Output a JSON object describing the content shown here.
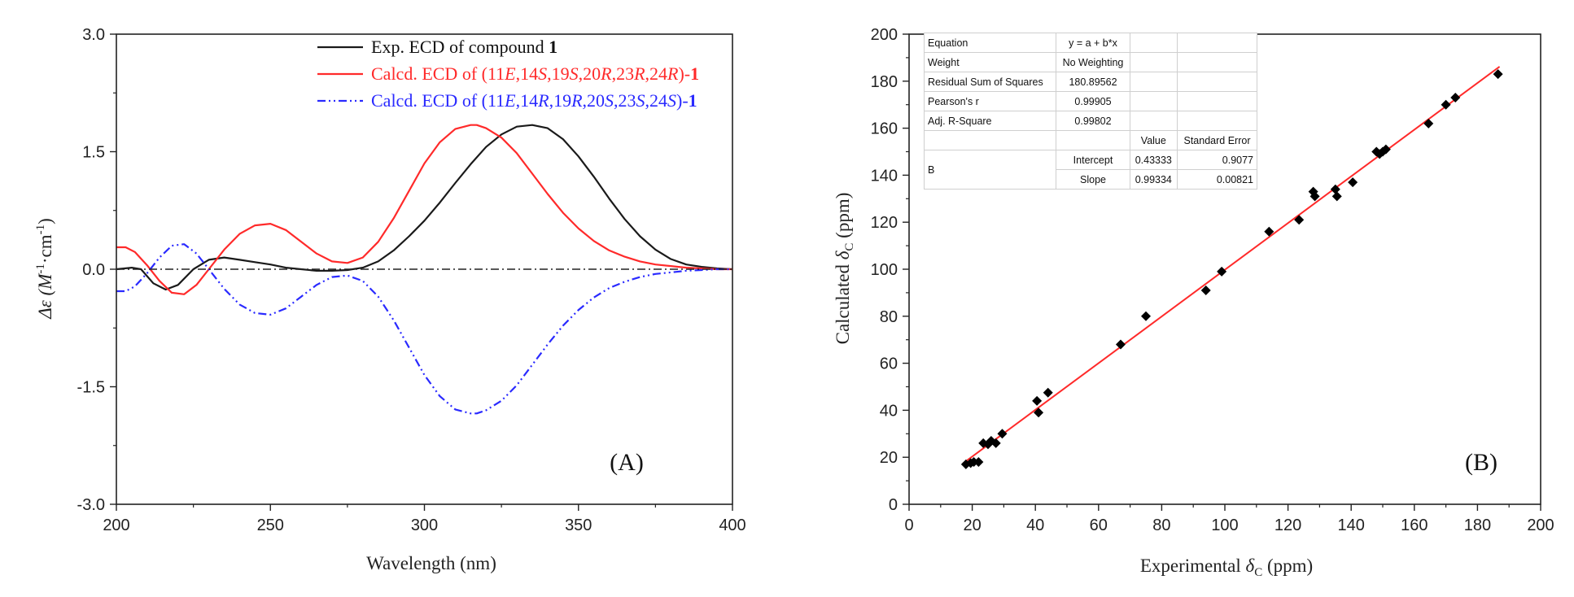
{
  "chart_data": [
    {
      "type": "line",
      "panel_label": "(A)",
      "xlabel": "Wavelength (nm)",
      "ylabel_prefix": "Δε (M",
      "ylabel_sup1": "-1",
      "ylabel_mid": "·cm",
      "ylabel_sup2": "-1",
      "ylabel_suffix": ")",
      "xlim": [
        200,
        400
      ],
      "ylim": [
        -3.0,
        3.0
      ],
      "xticks": [
        200,
        250,
        300,
        350,
        400
      ],
      "yticks": [
        -3.0,
        -1.5,
        0.0,
        1.5,
        3.0
      ],
      "xtick_labels": [
        "200",
        "250",
        "300",
        "350",
        "400"
      ],
      "ytick_labels": [
        "-3.0",
        "-1.5",
        "0.0",
        "1.5",
        "3.0"
      ],
      "legend_position": "top-right",
      "series": [
        {
          "name": "Exp. ECD of compound 1",
          "legend_parts": [
            {
              "text": "Exp. ECD of compound ",
              "style": "normal"
            },
            {
              "text": "1",
              "style": "bold"
            }
          ],
          "color": "#1a1a1a",
          "dash": "solid",
          "x": [
            200,
            205,
            208,
            212,
            216,
            220,
            225,
            230,
            235,
            240,
            245,
            250,
            255,
            260,
            265,
            270,
            275,
            280,
            285,
            290,
            295,
            300,
            305,
            310,
            315,
            320,
            325,
            330,
            335,
            340,
            345,
            350,
            355,
            360,
            365,
            370,
            375,
            380,
            385,
            390,
            395,
            400
          ],
          "y": [
            0.0,
            0.02,
            0.0,
            -0.18,
            -0.26,
            -0.2,
            0.0,
            0.12,
            0.15,
            0.12,
            0.09,
            0.06,
            0.02,
            0.0,
            -0.02,
            -0.02,
            -0.01,
            0.02,
            0.1,
            0.24,
            0.42,
            0.62,
            0.85,
            1.1,
            1.34,
            1.56,
            1.72,
            1.82,
            1.84,
            1.8,
            1.66,
            1.44,
            1.18,
            0.9,
            0.64,
            0.42,
            0.25,
            0.13,
            0.06,
            0.03,
            0.01,
            0.0
          ]
        },
        {
          "name": "Calcd. ECD of (11E,14S,19S,20R,23R,24R)-1",
          "legend_parts": [
            {
              "text": "Calcd. ECD of (11",
              "style": "normal"
            },
            {
              "text": "E",
              "style": "italic"
            },
            {
              "text": ",14",
              "style": "normal"
            },
            {
              "text": "S",
              "style": "italic"
            },
            {
              "text": ",19",
              "style": "normal"
            },
            {
              "text": "S",
              "style": "italic"
            },
            {
              "text": ",20",
              "style": "normal"
            },
            {
              "text": "R",
              "style": "italic"
            },
            {
              "text": ",23",
              "style": "normal"
            },
            {
              "text": "R",
              "style": "italic"
            },
            {
              "text": ",24",
              "style": "normal"
            },
            {
              "text": "R",
              "style": "italic"
            },
            {
              "text": ")-",
              "style": "normal"
            },
            {
              "text": "1",
              "style": "bold"
            }
          ],
          "color": "#ff2a2a",
          "dash": "solid",
          "x": [
            200,
            203,
            206,
            210,
            214,
            218,
            222,
            226,
            230,
            235,
            240,
            245,
            250,
            255,
            260,
            265,
            270,
            275,
            280,
            285,
            290,
            295,
            300,
            305,
            310,
            315,
            317,
            320,
            325,
            330,
            335,
            340,
            345,
            350,
            355,
            360,
            365,
            370,
            375,
            380,
            385,
            390,
            395,
            400
          ],
          "y": [
            0.28,
            0.28,
            0.22,
            0.05,
            -0.15,
            -0.3,
            -0.32,
            -0.2,
            0.0,
            0.25,
            0.45,
            0.56,
            0.58,
            0.5,
            0.35,
            0.2,
            0.1,
            0.08,
            0.15,
            0.35,
            0.65,
            1.0,
            1.35,
            1.62,
            1.79,
            1.84,
            1.84,
            1.8,
            1.68,
            1.48,
            1.22,
            0.96,
            0.72,
            0.52,
            0.36,
            0.24,
            0.16,
            0.1,
            0.06,
            0.04,
            0.02,
            0.01,
            0.0,
            0.0
          ]
        },
        {
          "name": "Calcd. ECD of (11E,14R,19R,20S,23S,24S)-1",
          "legend_parts": [
            {
              "text": "Calcd. ECD of (11",
              "style": "normal"
            },
            {
              "text": "E",
              "style": "italic"
            },
            {
              "text": ",14",
              "style": "normal"
            },
            {
              "text": "R",
              "style": "italic"
            },
            {
              "text": ",19",
              "style": "normal"
            },
            {
              "text": "R",
              "style": "italic"
            },
            {
              "text": ",20",
              "style": "normal"
            },
            {
              "text": "S",
              "style": "italic"
            },
            {
              "text": ",23",
              "style": "normal"
            },
            {
              "text": "S",
              "style": "italic"
            },
            {
              "text": ",24",
              "style": "normal"
            },
            {
              "text": "S",
              "style": "italic"
            },
            {
              "text": ")-",
              "style": "normal"
            },
            {
              "text": "1",
              "style": "bold"
            }
          ],
          "color": "#2a2aff",
          "dash": "dash-dot-dot",
          "x": [
            200,
            203,
            206,
            210,
            214,
            218,
            222,
            226,
            230,
            235,
            240,
            245,
            250,
            255,
            260,
            265,
            270,
            275,
            280,
            285,
            290,
            295,
            300,
            305,
            310,
            315,
            317,
            320,
            325,
            330,
            335,
            340,
            345,
            350,
            355,
            360,
            365,
            370,
            375,
            380,
            385,
            390,
            395,
            400
          ],
          "y": [
            -0.28,
            -0.28,
            -0.22,
            -0.05,
            0.15,
            0.3,
            0.32,
            0.2,
            0.0,
            -0.25,
            -0.45,
            -0.56,
            -0.58,
            -0.5,
            -0.35,
            -0.2,
            -0.1,
            -0.08,
            -0.15,
            -0.35,
            -0.65,
            -1.0,
            -1.35,
            -1.62,
            -1.79,
            -1.84,
            -1.84,
            -1.8,
            -1.68,
            -1.48,
            -1.22,
            -0.96,
            -0.72,
            -0.52,
            -0.36,
            -0.24,
            -0.16,
            -0.1,
            -0.06,
            -0.04,
            -0.02,
            -0.01,
            0.0,
            0.0
          ]
        }
      ],
      "reference_line": {
        "y": 0.0,
        "style": "dash-dot",
        "color": "#222222"
      }
    },
    {
      "type": "scatter",
      "panel_label": "(B)",
      "xlabel_prefix": "Experimental ",
      "xlabel_delta": "δ",
      "xlabel_sub": "C",
      "xlabel_suffix": " (ppm)",
      "ylabel_prefix": "Calculated ",
      "ylabel_delta": "δ",
      "ylabel_sub": "C",
      "ylabel_suffix": " (ppm)",
      "xlim": [
        0,
        200
      ],
      "ylim": [
        0,
        200
      ],
      "xticks": [
        0,
        20,
        40,
        60,
        80,
        100,
        120,
        140,
        160,
        180,
        200
      ],
      "yticks": [
        0,
        20,
        40,
        60,
        80,
        100,
        120,
        140,
        160,
        180,
        200
      ],
      "xtick_labels": [
        "0",
        "20",
        "40",
        "60",
        "80",
        "100",
        "120",
        "140",
        "160",
        "180",
        "200"
      ],
      "ytick_labels": [
        "0",
        "20",
        "40",
        "60",
        "80",
        "100",
        "120",
        "140",
        "160",
        "180",
        "200"
      ],
      "point_color": "#000000",
      "fit_color": "#ff2a2a",
      "fit": {
        "intercept": 0.43333,
        "slope": 0.99334,
        "x_range": [
          17,
          187
        ]
      },
      "x": [
        18,
        19.5,
        20.5,
        22,
        23.5,
        25,
        26,
        27.5,
        29.5,
        40.5,
        41,
        44,
        67,
        75,
        94,
        99,
        114,
        123.5,
        128,
        128.5,
        135,
        135.5,
        140.5,
        148,
        149,
        150,
        151,
        164.5,
        170,
        173,
        186.5
      ],
      "y": [
        17,
        17.5,
        18,
        18,
        26,
        25.5,
        27,
        26,
        30,
        44,
        39,
        47.5,
        68,
        80,
        91,
        99,
        116,
        121,
        133,
        131,
        134,
        131,
        137,
        150,
        149,
        150,
        151,
        162,
        170,
        173,
        183
      ],
      "stats_table": {
        "rows": [
          {
            "label": "Equation",
            "value": "y = a + b*x"
          },
          {
            "label": "Weight",
            "value": "No Weighting"
          },
          {
            "label": "Residual Sum of Squares",
            "value": "180.89562"
          },
          {
            "label": "Pearson's r",
            "value": "0.99905"
          },
          {
            "label": "Adj. R-Square",
            "value": "0.99802"
          }
        ],
        "param_header": {
          "value": "Value",
          "error": "Standard Error"
        },
        "group_label": "B",
        "params": [
          {
            "name": "Intercept",
            "value": "0.43333",
            "error": "0.9077"
          },
          {
            "name": "Slope",
            "value": "0.99334",
            "error": "0.00821"
          }
        ]
      }
    }
  ]
}
